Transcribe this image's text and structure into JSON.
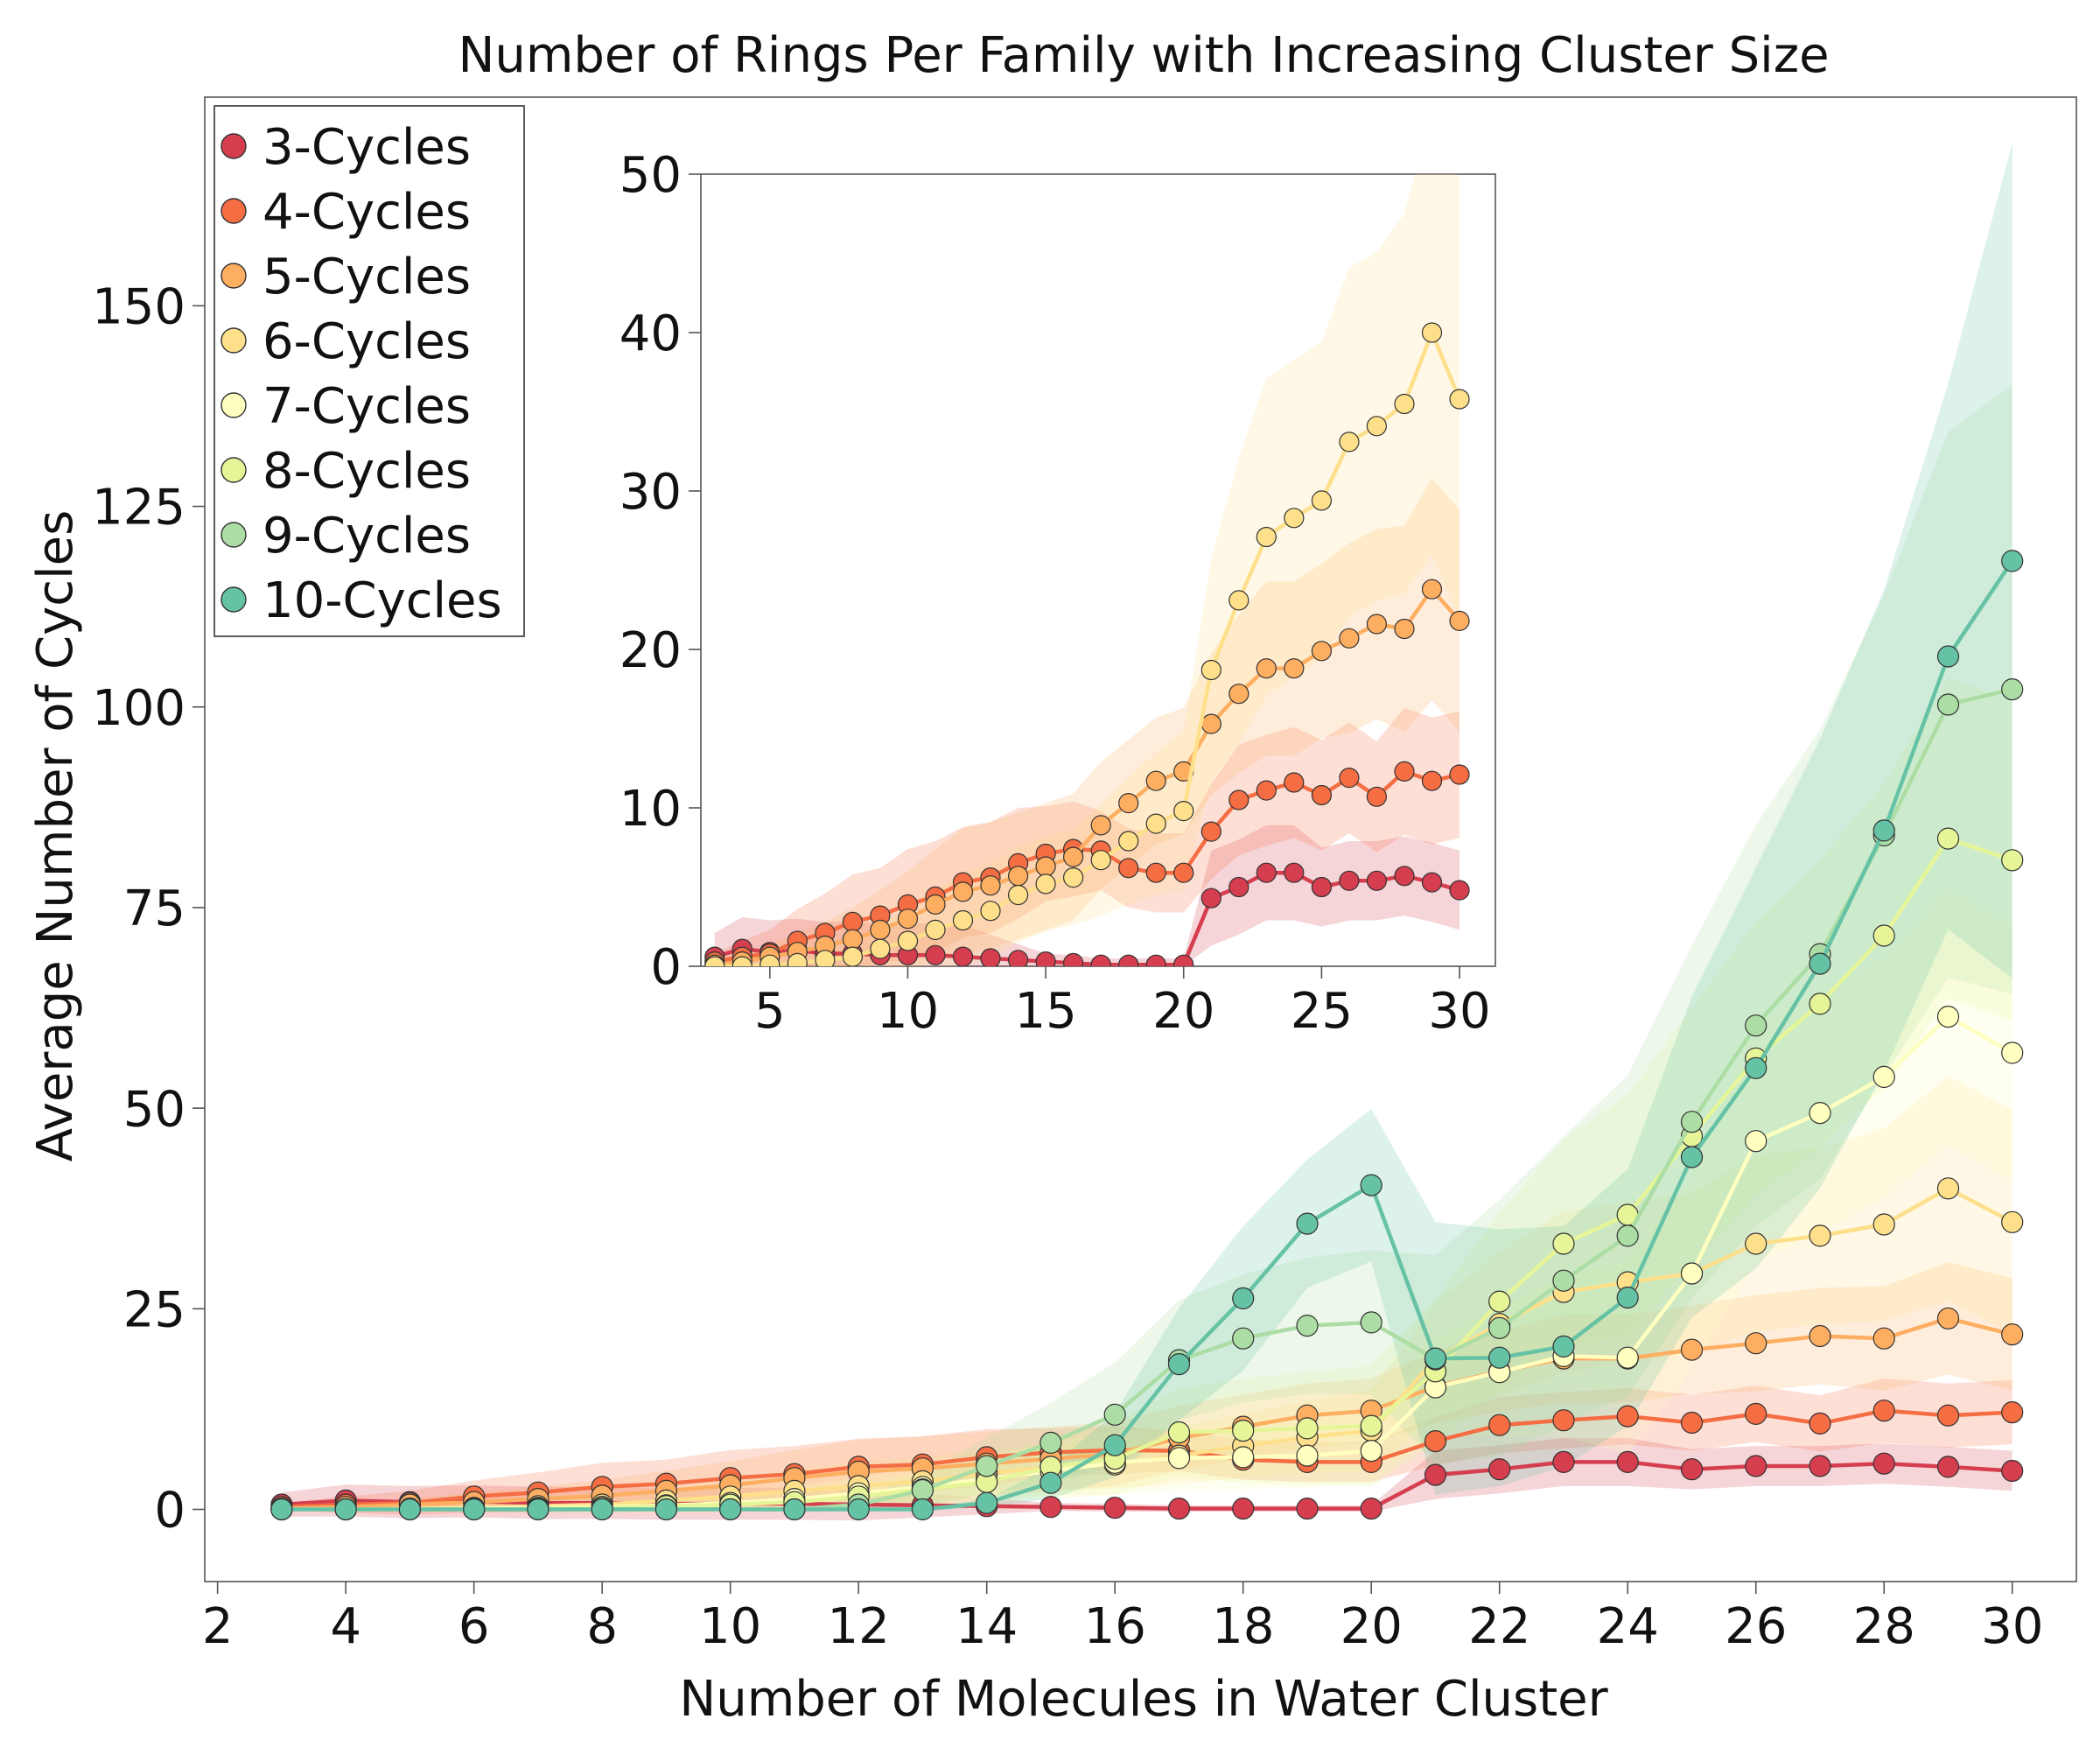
{
  "chart_data": [
    {
      "type": "line",
      "title": "Number of Rings Per Family with Increasing Cluster Size",
      "xlabel": "Number of Molecules in Water Cluster",
      "ylabel": "Average Number of Cycles",
      "xlim": [
        1.8,
        31
      ],
      "ylim": [
        -9,
        176
      ],
      "xticks": [
        2,
        4,
        6,
        8,
        10,
        12,
        14,
        16,
        18,
        20,
        22,
        24,
        26,
        28,
        30
      ],
      "yticks": [
        0,
        25,
        50,
        75,
        100,
        125,
        150
      ],
      "grid": false,
      "legend_position": "top-left",
      "x": [
        3,
        4,
        5,
        6,
        7,
        8,
        9,
        10,
        11,
        12,
        13,
        14,
        15,
        16,
        17,
        18,
        19,
        20,
        21,
        22,
        23,
        24,
        25,
        26,
        27,
        28,
        29,
        30
      ],
      "series": [
        {
          "name": "3-Cycles",
          "color": "#d53e4f",
          "values": [
            0.6,
            1.1,
            0.9,
            1.0,
            0.8,
            0.8,
            0.7,
            0.7,
            0.7,
            0.6,
            0.5,
            0.4,
            0.3,
            0.2,
            0.1,
            0.1,
            0.1,
            0.1,
            4.3,
            5.0,
            5.9,
            5.9,
            5.0,
            5.4,
            5.4,
            5.7,
            5.3,
            4.8
          ],
          "band": [
            1.5,
            2.0,
            2.0,
            2.0,
            2.0,
            2.0,
            2.0,
            2.0,
            2.0,
            2.0,
            1.5,
            1.0,
            0.5,
            0.5,
            0.4,
            0.4,
            0.4,
            0.4,
            3.0,
            3.0,
            3.0,
            3.0,
            2.5,
            2.5,
            2.5,
            2.5,
            2.5,
            2.5
          ]
        },
        {
          "name": "4-Cycles",
          "color": "#f46d43",
          "values": [
            0.3,
            0.6,
            0.8,
            1.6,
            2.1,
            2.8,
            3.2,
            3.9,
            4.4,
            5.3,
            5.6,
            6.5,
            7.1,
            7.4,
            7.3,
            6.2,
            5.9,
            5.9,
            8.5,
            10.5,
            11.1,
            11.6,
            10.8,
            11.9,
            10.7,
            12.3,
            11.7,
            12.1
          ],
          "band": [
            0.5,
            1.0,
            1.5,
            2.0,
            2.5,
            3.0,
            3.0,
            3.5,
            3.5,
            3.5,
            3.5,
            3.5,
            3.0,
            3.0,
            2.5,
            2.5,
            2.5,
            2.5,
            3.0,
            3.5,
            3.5,
            3.5,
            3.5,
            3.5,
            3.5,
            4.0,
            4.0,
            4.0
          ]
        },
        {
          "name": "5-Cycles",
          "color": "#fdae61",
          "values": [
            0.1,
            0.3,
            0.6,
            0.9,
            1.3,
            1.7,
            2.3,
            3.0,
            3.9,
            4.7,
            5.1,
            5.7,
            6.3,
            6.9,
            8.9,
            10.3,
            11.7,
            12.3,
            15.3,
            17.2,
            18.8,
            18.8,
            19.9,
            20.7,
            21.6,
            21.3,
            23.8,
            21.8
          ],
          "band": [
            0.3,
            0.5,
            0.8,
            1.2,
            1.5,
            2.0,
            2.5,
            3.0,
            3.5,
            4.0,
            4.0,
            4.0,
            4.0,
            4.0,
            4.0,
            4.0,
            4.0,
            4.0,
            4.5,
            5.0,
            5.5,
            5.5,
            5.5,
            6.0,
            6.0,
            6.5,
            7.0,
            7.0
          ]
        },
        {
          "name": "6-Cycles",
          "color": "#fee08b",
          "values": [
            0.0,
            0.0,
            0.1,
            0.2,
            0.4,
            0.6,
            1.1,
            1.6,
            2.3,
            2.9,
            3.5,
            4.5,
            5.2,
            5.6,
            6.7,
            7.9,
            9.0,
            9.8,
            18.7,
            23.1,
            27.1,
            28.3,
            29.4,
            33.1,
            34.1,
            35.5,
            40.0,
            35.8
          ],
          "band": [
            0.1,
            0.2,
            0.3,
            0.5,
            0.8,
            1.0,
            1.5,
            2.0,
            2.5,
            3.0,
            3.0,
            3.0,
            3.0,
            3.0,
            3.5,
            4.0,
            4.5,
            5.0,
            7.0,
            9.0,
            10.0,
            10.0,
            10.0,
            11.0,
            11.0,
            12.0,
            14.0,
            14.0
          ]
        },
        {
          "name": "7-Cycles",
          "color": "#ffffbf",
          "values": [
            0.0,
            0.0,
            0.0,
            0.1,
            0.2,
            0.3,
            0.5,
            0.8,
            1.3,
            2.0,
            2.8,
            3.8,
            4.8,
            5.8,
            6.4,
            6.5,
            6.7,
            7.3,
            15.2,
            17.1,
            19.1,
            18.9,
            29.4,
            45.9,
            49.4,
            53.9,
            61.4,
            56.9
          ],
          "band": [
            0.1,
            0.1,
            0.1,
            0.2,
            0.3,
            0.5,
            0.8,
            1.0,
            1.5,
            2.0,
            2.5,
            3.0,
            3.5,
            4.0,
            4.0,
            4.0,
            4.0,
            4.0,
            6.0,
            8.0,
            10.0,
            12.0,
            12.0,
            15.0,
            15.0,
            15.0,
            16.0,
            16.0
          ]
        },
        {
          "name": "8-Cycles",
          "color": "#e6f598",
          "values": [
            0.0,
            0.0,
            0.0,
            0.0,
            0.1,
            0.2,
            0.4,
            0.6,
            0.9,
            1.6,
            2.5,
            3.4,
            5.3,
            6.3,
            9.6,
            9.8,
            10.1,
            10.4,
            17.2,
            25.9,
            33.1,
            36.7,
            46.5,
            56.2,
            63.0,
            71.5,
            83.6,
            80.9
          ],
          "band": [
            0.1,
            0.1,
            0.1,
            0.1,
            0.2,
            0.3,
            0.5,
            0.8,
            1.2,
            1.5,
            2.0,
            2.5,
            3.5,
            4.5,
            5.5,
            6.5,
            7.0,
            7.5,
            9.0,
            11.0,
            13.0,
            15.0,
            16.0,
            17.0,
            18.0,
            19.0,
            20.0,
            20.0
          ]
        },
        {
          "name": "9-Cycles",
          "color": "#abdda4",
          "values": [
            0.0,
            0.0,
            0.0,
            0.0,
            0.0,
            0.0,
            0.0,
            0.0,
            0.0,
            0.6,
            2.4,
            5.4,
            8.3,
            11.8,
            18.6,
            21.3,
            22.9,
            23.3,
            18.7,
            22.6,
            28.5,
            34.1,
            48.3,
            60.3,
            69.2,
            84.0,
            100.3,
            102.2
          ],
          "band": [
            0.1,
            0.1,
            0.1,
            0.1,
            0.1,
            0.1,
            0.1,
            0.2,
            0.3,
            0.8,
            2.0,
            3.5,
            5.0,
            6.5,
            7.5,
            8.0,
            8.5,
            9.0,
            13.0,
            16.0,
            18.0,
            20.0,
            22.0,
            25.0,
            28.0,
            30.0,
            34.0,
            38.0
          ]
        },
        {
          "name": "10-Cycles",
          "color": "#66c2a5",
          "values": [
            0.0,
            0.0,
            0.0,
            0.0,
            0.0,
            0.0,
            0.0,
            0.0,
            0.0,
            0.0,
            0.0,
            0.8,
            3.3,
            8.0,
            18.1,
            26.3,
            35.6,
            40.4,
            18.8,
            18.9,
            20.3,
            26.4,
            43.9,
            55.0,
            68.0,
            84.6,
            106.3,
            118.2
          ],
          "band": [
            0.1,
            0.1,
            0.1,
            0.1,
            0.1,
            0.1,
            0.1,
            0.1,
            0.1,
            0.1,
            0.2,
            0.5,
            2.0,
            4.0,
            7.0,
            9.0,
            8.0,
            9.5,
            17.0,
            16.0,
            15.0,
            16.0,
            20.0,
            25.0,
            28.0,
            30.0,
            34.0,
            52.0
          ]
        }
      ]
    },
    {
      "type": "line",
      "title": "",
      "xlabel": "",
      "ylabel": "",
      "xlim": [
        2.5,
        31.3
      ],
      "ylim": [
        0,
        50
      ],
      "xticks": [
        5,
        10,
        15,
        20,
        25,
        30
      ],
      "yticks": [
        0,
        10,
        20,
        30,
        40,
        50
      ],
      "grid": false,
      "x": [
        3,
        4,
        5,
        6,
        7,
        8,
        9,
        10,
        11,
        12,
        13,
        14,
        15,
        16,
        17,
        18,
        19,
        20,
        21,
        22,
        23,
        24,
        25,
        26,
        27,
        28,
        29,
        30
      ],
      "series": [
        {
          "name": "3-Cycles",
          "color": "#d53e4f",
          "values": [
            0.6,
            1.1,
            0.9,
            1.0,
            0.8,
            0.8,
            0.7,
            0.7,
            0.7,
            0.6,
            0.5,
            0.4,
            0.3,
            0.2,
            0.1,
            0.1,
            0.1,
            0.1,
            4.3,
            5.0,
            5.9,
            5.9,
            5.0,
            5.4,
            5.4,
            5.7,
            5.3,
            4.8
          ],
          "band": [
            1.5,
            2.0,
            2.0,
            2.0,
            2.0,
            2.0,
            2.0,
            2.0,
            2.0,
            2.0,
            1.5,
            1.0,
            0.5,
            0.5,
            0.4,
            0.4,
            0.4,
            0.4,
            3.0,
            3.0,
            3.0,
            3.0,
            2.5,
            2.5,
            2.5,
            2.5,
            2.5,
            2.5
          ]
        },
        {
          "name": "4-Cycles",
          "color": "#f46d43",
          "values": [
            0.3,
            0.6,
            0.8,
            1.6,
            2.1,
            2.8,
            3.2,
            3.9,
            4.4,
            5.3,
            5.6,
            6.5,
            7.1,
            7.4,
            7.3,
            6.2,
            5.9,
            5.9,
            8.5,
            10.5,
            11.1,
            11.6,
            10.8,
            11.9,
            10.7,
            12.3,
            11.7,
            12.1
          ],
          "band": [
            0.5,
            1.0,
            1.5,
            2.0,
            2.5,
            3.0,
            3.0,
            3.5,
            3.5,
            3.5,
            3.5,
            3.5,
            3.0,
            3.0,
            2.5,
            2.5,
            2.5,
            2.5,
            3.0,
            3.5,
            3.5,
            3.5,
            3.5,
            3.5,
            3.5,
            4.0,
            4.0,
            4.0
          ]
        },
        {
          "name": "5-Cycles",
          "color": "#fdae61",
          "values": [
            0.1,
            0.3,
            0.6,
            0.9,
            1.3,
            1.7,
            2.3,
            3.0,
            3.9,
            4.7,
            5.1,
            5.7,
            6.3,
            6.9,
            8.9,
            10.3,
            11.7,
            12.3,
            15.3,
            17.2,
            18.8,
            18.8,
            19.9,
            20.7,
            21.6,
            21.3,
            23.8,
            21.8
          ],
          "band": [
            0.3,
            0.5,
            0.8,
            1.2,
            1.5,
            2.0,
            2.5,
            3.0,
            3.5,
            4.0,
            4.0,
            4.0,
            4.0,
            4.0,
            4.0,
            4.0,
            4.0,
            4.0,
            4.5,
            5.0,
            5.5,
            5.5,
            5.5,
            6.0,
            6.0,
            6.5,
            7.0,
            7.0
          ]
        },
        {
          "name": "6-Cycles",
          "color": "#fee08b",
          "values": [
            0.0,
            0.0,
            0.1,
            0.2,
            0.4,
            0.6,
            1.1,
            1.6,
            2.3,
            2.9,
            3.5,
            4.5,
            5.2,
            5.6,
            6.7,
            7.9,
            9.0,
            9.8,
            18.7,
            23.1,
            27.1,
            28.3,
            29.4,
            33.1,
            34.1,
            35.5,
            40.0,
            35.8
          ],
          "band": [
            0.1,
            0.2,
            0.3,
            0.5,
            0.8,
            1.0,
            1.5,
            2.0,
            2.5,
            3.0,
            3.0,
            3.0,
            3.0,
            3.0,
            3.5,
            4.0,
            4.5,
            5.0,
            7.0,
            9.0,
            10.0,
            10.0,
            10.0,
            11.0,
            11.0,
            12.0,
            14.0,
            14.0
          ]
        }
      ]
    }
  ]
}
